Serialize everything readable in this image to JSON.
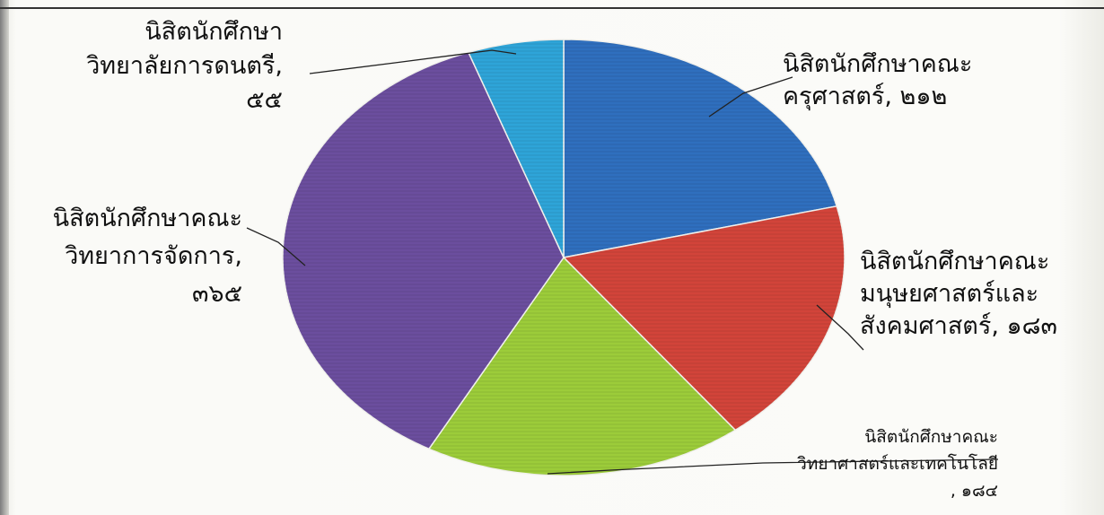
{
  "chart_data": {
    "type": "pie",
    "title": "",
    "slices": [
      {
        "label_lines": [
          "นิสิตนักศึกษาคณะ",
          "ครุศาสตร์, ๒๑๒"
        ],
        "value": 212,
        "color": "#2f6fbe"
      },
      {
        "label_lines": [
          "นิสิตนักศึกษาคณะ",
          "มนุษยศาสตร์และ",
          "สังคมศาสตร์, ๑๘๓"
        ],
        "value": 183,
        "color": "#d2443a"
      },
      {
        "label_lines": [
          "นิสิตนักศึกษาคณะ",
          "วิทยาศาสตร์และเทคโนโลยี",
          ", ๑๘๔"
        ],
        "value": 184,
        "color": "#9ccc3a"
      },
      {
        "label_lines": [
          "นิสิตนักศึกษาคณะ",
          "วิทยาการจัดการ,",
          "๓๖๕"
        ],
        "value": 365,
        "color": "#6b4e9e"
      },
      {
        "label_lines": [
          "นิสิตนักศึกษา",
          "วิทยาลัยการดนตรี,",
          "๕๕"
        ],
        "value": 55,
        "color": "#2ea4d8"
      }
    ]
  }
}
